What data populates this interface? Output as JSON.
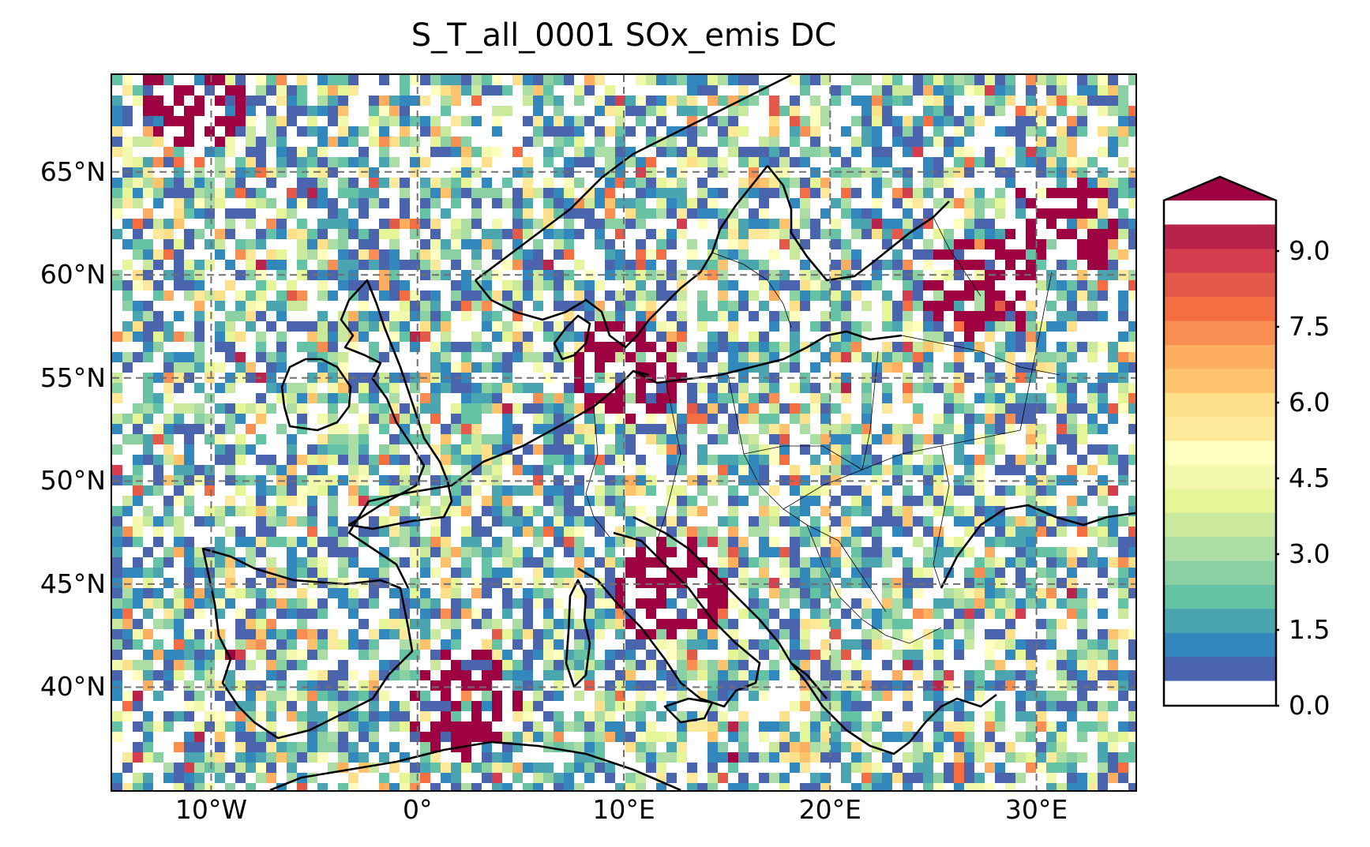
{
  "title": "S_T_all_0001 SOx_emis DC",
  "lat_labels": [
    "65°N",
    "60°N",
    "55°N",
    "50°N",
    "45°N",
    "40°N"
  ],
  "lon_labels": [
    "10°W",
    "0°",
    "10°E",
    "20°E",
    "30°E"
  ],
  "extent": {
    "lon_min": -14.8,
    "lon_max": 34.8,
    "lat_min": 35.0,
    "lat_max": 69.7
  },
  "gridlines": {
    "lons": [
      -10,
      0,
      10,
      20,
      30
    ],
    "lats": [
      40,
      45,
      50,
      55,
      60,
      65
    ],
    "style": "dashed"
  },
  "colorbar": {
    "ticks": [
      "0.0",
      "1.5",
      "3.0",
      "4.5",
      "6.0",
      "7.5",
      "9.0"
    ],
    "tick_values": [
      0,
      1.5,
      3.0,
      4.5,
      6.0,
      7.5,
      9.0
    ],
    "vmin": 0.0,
    "vmax": 10.0,
    "extend": "max",
    "colors": [
      "#ffffff",
      "#4a64ad",
      "#3288bd",
      "#4aa5b1",
      "#66c2a5",
      "#8ad0a3",
      "#abdda4",
      "#cbe99c",
      "#e6f598",
      "#f4f9b0",
      "#ffffbf",
      "#fee89a",
      "#fee08b",
      "#fdc46d",
      "#fdae61",
      "#f98e52",
      "#f46d43",
      "#e45a49",
      "#d53e4f",
      "#b8234b",
      "#9e0142"
    ]
  },
  "hotspots": [
    {
      "region": "north-sea-baltic",
      "lon": 10,
      "lat": 55.5,
      "level": "high"
    },
    {
      "region": "gulf-of-finland",
      "lon": 27,
      "lat": 59.5,
      "level": "high"
    },
    {
      "region": "northwest-russia",
      "lon": 31,
      "lat": 62.5,
      "level": "high"
    },
    {
      "region": "balearic-sea",
      "lon": 2,
      "lat": 39.5,
      "level": "high"
    },
    {
      "region": "northern-norway-sea",
      "lon": -11,
      "lat": 69,
      "level": "high"
    },
    {
      "region": "adriatic-north",
      "lon": 12,
      "lat": 45,
      "level": "high"
    }
  ]
}
